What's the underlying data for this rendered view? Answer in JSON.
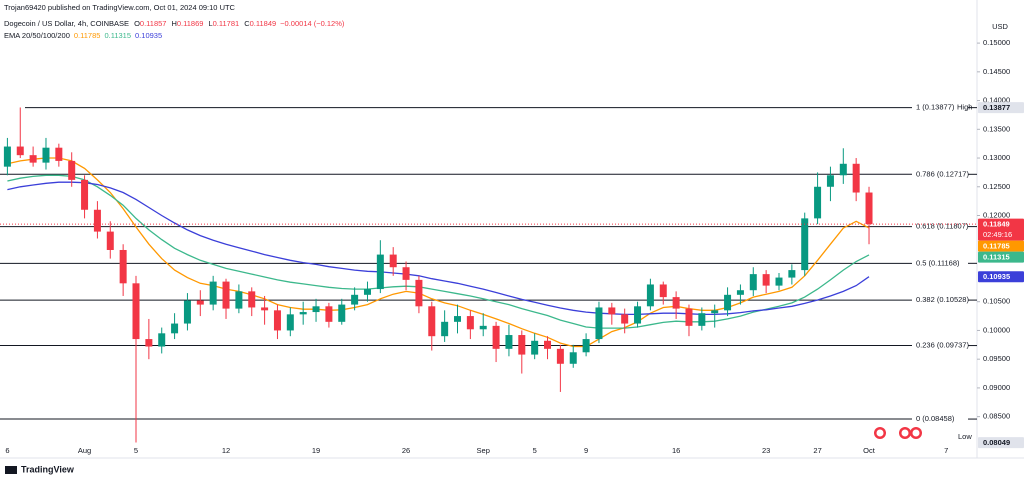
{
  "header": {
    "published": "Trojan69420 published on TradingView.com, Oct 01, 2024 09:10 UTC",
    "symbol": "Dogecoin / US Dollar, 4h, COINBASE",
    "ohlc": [
      {
        "label": "O",
        "value": 0.11857
      },
      {
        "label": "H",
        "value": 0.11869
      },
      {
        "label": "L",
        "value": 0.11781
      },
      {
        "label": "C",
        "value": 0.11849
      }
    ],
    "change": "−0.00014 (−0.12%)",
    "indicator": "EMA 20/50/100/200",
    "currency": "USD",
    "countdown": "02:49:16",
    "brand": "TradingView"
  },
  "chart_data": {
    "type": "candlestick",
    "categories": [
      "6",
      null,
      null,
      null,
      null,
      null,
      "Aug",
      null,
      null,
      null,
      "5",
      null,
      null,
      null,
      null,
      null,
      null,
      "12",
      null,
      null,
      null,
      null,
      null,
      null,
      "19",
      null,
      null,
      null,
      null,
      null,
      null,
      "26",
      null,
      null,
      null,
      null,
      null,
      "Sep",
      null,
      null,
      null,
      "5",
      null,
      null,
      null,
      "9",
      null,
      null,
      null,
      null,
      null,
      null,
      "16",
      null,
      null,
      null,
      null,
      null,
      null,
      "23",
      null,
      null,
      null,
      "27",
      null,
      null,
      null,
      "Oct",
      null,
      null,
      null,
      null,
      null,
      "7"
    ],
    "open": [
      0.1285,
      0.132,
      0.1305,
      0.1292,
      0.1318,
      0.1295,
      0.1262,
      0.121,
      0.1172,
      0.114,
      0.1082,
      0.0985,
      0.0972,
      0.0995,
      0.1012,
      0.1052,
      0.1045,
      0.1085,
      0.1038,
      0.1068,
      0.104,
      0.1035,
      0.1,
      0.1028,
      0.1032,
      0.1042,
      0.1015,
      0.1045,
      0.1062,
      0.1072,
      0.1132,
      0.111,
      0.1088,
      0.1042,
      0.099,
      0.1015,
      0.1025,
      0.1002,
      0.1008,
      0.0968,
      0.0992,
      0.0958,
      0.0982,
      0.0968,
      0.0942,
      0.0962,
      0.0985,
      0.104,
      0.1028,
      0.1012,
      0.1042,
      0.108,
      0.1058,
      0.1038,
      0.1008,
      0.103,
      0.1035,
      0.1062,
      0.107,
      0.1098,
      0.1078,
      0.1092,
      0.1105,
      0.1195,
      0.125,
      0.127,
      0.129,
      0.124,
      null,
      null,
      null,
      null,
      null,
      null
    ],
    "high": [
      0.1335,
      0.1388,
      0.132,
      0.1335,
      0.1325,
      0.131,
      0.127,
      0.1225,
      0.119,
      0.115,
      0.1095,
      0.102,
      0.1005,
      0.103,
      0.1065,
      0.107,
      0.1095,
      0.109,
      0.108,
      0.1075,
      0.106,
      0.1045,
      0.104,
      0.105,
      0.1055,
      0.1048,
      0.1055,
      0.1075,
      0.1085,
      0.1157,
      0.1145,
      0.112,
      0.1095,
      0.105,
      0.1035,
      0.1045,
      0.1035,
      0.103,
      0.1015,
      0.101,
      0.1,
      0.0995,
      0.099,
      0.0975,
      0.0975,
      0.0995,
      0.105,
      0.1048,
      0.1038,
      0.105,
      0.109,
      0.1085,
      0.1068,
      0.1045,
      0.104,
      0.1045,
      0.1075,
      0.108,
      0.111,
      0.1105,
      0.11,
      0.1115,
      0.1205,
      0.1275,
      0.1285,
      0.1317,
      0.13,
      0.125,
      null,
      null,
      null,
      null,
      null,
      null
    ],
    "low": [
      0.127,
      0.13,
      0.1285,
      0.128,
      0.1285,
      0.125,
      0.1195,
      0.116,
      0.1125,
      0.106,
      0.0805,
      0.095,
      0.096,
      0.0985,
      0.1,
      0.1025,
      0.1035,
      0.102,
      0.103,
      0.1025,
      0.101,
      0.0985,
      0.099,
      0.101,
      0.1015,
      0.1005,
      0.101,
      0.1035,
      0.105,
      0.1065,
      0.1095,
      0.107,
      0.103,
      0.0965,
      0.098,
      0.0995,
      0.0985,
      0.099,
      0.0945,
      0.0955,
      0.0925,
      0.095,
      0.095,
      0.0893,
      0.0935,
      0.0955,
      0.0978,
      0.101,
      0.0995,
      0.1005,
      0.1035,
      0.1045,
      0.102,
      0.099,
      0.1,
      0.1005,
      0.1025,
      0.1045,
      0.106,
      0.1065,
      0.107,
      0.108,
      0.1095,
      0.1185,
      0.1225,
      0.1255,
      0.1225,
      0.115,
      null,
      null,
      null,
      null,
      null,
      null
    ],
    "close": [
      0.132,
      0.1305,
      0.1292,
      0.1318,
      0.1295,
      0.1262,
      0.121,
      0.1172,
      0.114,
      0.1082,
      0.0985,
      0.0972,
      0.0995,
      0.1012,
      0.1052,
      0.1045,
      0.1085,
      0.1038,
      0.1068,
      0.104,
      0.1035,
      0.1,
      0.1028,
      0.1032,
      0.1042,
      0.1015,
      0.1045,
      0.1062,
      0.1072,
      0.1132,
      0.111,
      0.1088,
      0.1042,
      0.099,
      0.1015,
      0.1025,
      0.1002,
      0.1008,
      0.0968,
      0.0992,
      0.0958,
      0.0982,
      0.0968,
      0.0942,
      0.0962,
      0.0985,
      0.104,
      0.1028,
      0.1012,
      0.1042,
      0.108,
      0.1058,
      0.1038,
      0.1008,
      0.103,
      0.1035,
      0.1062,
      0.107,
      0.1098,
      0.1078,
      0.1092,
      0.1105,
      0.1195,
      0.125,
      0.127,
      0.129,
      0.124,
      0.11849,
      null,
      null,
      null,
      null,
      null,
      null
    ],
    "up_color": "#089981",
    "down_color": "#f23645",
    "series": [
      {
        "color": "#ff9800",
        "values": [
          0.129,
          0.1295,
          0.1298,
          0.13,
          0.13,
          0.1295,
          0.1282,
          0.1262,
          0.124,
          0.1212,
          0.118,
          0.115,
          0.1125,
          0.1105,
          0.1092,
          0.1082,
          0.1078,
          0.1072,
          0.1068,
          0.1062,
          0.1055,
          0.1045,
          0.104,
          0.1037,
          0.1037,
          0.1035,
          0.1036,
          0.104,
          0.1045,
          0.1055,
          0.1063,
          0.1068,
          0.1065,
          0.1055,
          0.1048,
          0.1043,
          0.1035,
          0.1028,
          0.102,
          0.1012,
          0.1003,
          0.0995,
          0.0988,
          0.0978,
          0.0972,
          0.0972,
          0.0985,
          0.0998,
          0.1005,
          0.1015,
          0.103,
          0.104,
          0.1042,
          0.1038,
          0.1035,
          0.1035,
          0.104,
          0.1048,
          0.1058,
          0.1063,
          0.1068,
          0.1075,
          0.1095,
          0.1122,
          0.115,
          0.1178,
          0.119,
          0.11785,
          null,
          null,
          null,
          null,
          null,
          null
        ]
      },
      {
        "color": "#3cb88c",
        "values": [
          0.126,
          0.1265,
          0.1268,
          0.127,
          0.127,
          0.1268,
          0.1262,
          0.125,
          0.1235,
          0.1218,
          0.1195,
          0.1175,
          0.1158,
          0.1143,
          0.1132,
          0.1122,
          0.1115,
          0.1108,
          0.1103,
          0.1098,
          0.1093,
          0.1088,
          0.1084,
          0.1081,
          0.1078,
          0.1075,
          0.1073,
          0.1072,
          0.1072,
          0.1074,
          0.1076,
          0.1077,
          0.1076,
          0.1072,
          0.1068,
          0.1064,
          0.106,
          0.1055,
          0.105,
          0.1045,
          0.1038,
          0.1032,
          0.1026,
          0.1018,
          0.1012,
          0.1006,
          0.1004,
          0.1004,
          0.1004,
          0.1006,
          0.101,
          0.1014,
          0.1016,
          0.1015,
          0.1015,
          0.1016,
          0.102,
          0.1025,
          0.1032,
          0.1037,
          0.1042,
          0.1048,
          0.1058,
          0.1072,
          0.1088,
          0.1105,
          0.112,
          0.11315,
          null,
          null,
          null,
          null,
          null,
          null
        ]
      },
      {
        "color": "#3b3fd9",
        "values": [
          0.1245,
          0.125,
          0.1253,
          0.1256,
          0.1258,
          0.1258,
          0.1257,
          0.1254,
          0.1248,
          0.124,
          0.1228,
          0.1214,
          0.12,
          0.1187,
          0.1175,
          0.1165,
          0.1157,
          0.115,
          0.1144,
          0.1138,
          0.1132,
          0.1127,
          0.1122,
          0.1118,
          0.1115,
          0.1111,
          0.1108,
          0.1105,
          0.1103,
          0.1102,
          0.11,
          0.1098,
          0.1095,
          0.109,
          0.1086,
          0.1082,
          0.1077,
          0.1072,
          0.1066,
          0.106,
          0.1054,
          0.1049,
          0.1044,
          0.1039,
          0.1035,
          0.1032,
          0.103,
          0.1029,
          0.1028,
          0.1028,
          0.1029,
          0.103,
          0.103,
          0.1029,
          0.1028,
          0.1028,
          0.1029,
          0.1031,
          0.1034,
          0.1036,
          0.1039,
          0.1042,
          0.1047,
          0.1053,
          0.106,
          0.1068,
          0.1078,
          0.10935,
          null,
          null,
          null,
          null,
          null,
          null
        ]
      }
    ],
    "ylim": [
      0.0785,
      0.1575
    ],
    "yticks": [
      {
        "value": 0.15,
        "label": "0.15000"
      },
      {
        "value": 0.145,
        "label": "0.14500"
      },
      {
        "value": 0.14,
        "label": "0.14000"
      },
      {
        "value": 0.135,
        "label": "0.13500"
      },
      {
        "value": 0.13,
        "label": "0.13000"
      },
      {
        "value": 0.125,
        "label": "0.12500"
      },
      {
        "value": 0.12,
        "label": "0.12000"
      },
      {
        "value": 0.105,
        "label": "0.10500"
      },
      {
        "value": 0.1,
        "label": "0.10000"
      },
      {
        "value": 0.095,
        "label": "0.09500"
      },
      {
        "value": 0.09,
        "label": "0.09000"
      },
      {
        "value": 0.085,
        "label": "0.08500"
      }
    ],
    "fib_levels": [
      {
        "label": "1 (0.13877)",
        "value": 0.13877
      },
      {
        "label": "0.786 (0.12717)",
        "value": 0.12717
      },
      {
        "label": "0.618 (0.11807)",
        "value": 0.11807
      },
      {
        "label": "0.5 (0.11168)",
        "value": 0.11168
      },
      {
        "label": "0.382 (0.10528)",
        "value": 0.10528
      },
      {
        "label": "0.236 (0.09737)",
        "value": 0.09737
      },
      {
        "label": "0 (0.08458)",
        "value": 0.08458
      }
    ],
    "high_mark": {
      "label": "High",
      "value": 0.13877
    },
    "low_mark": {
      "label": "Low",
      "value": 0.08049
    }
  }
}
